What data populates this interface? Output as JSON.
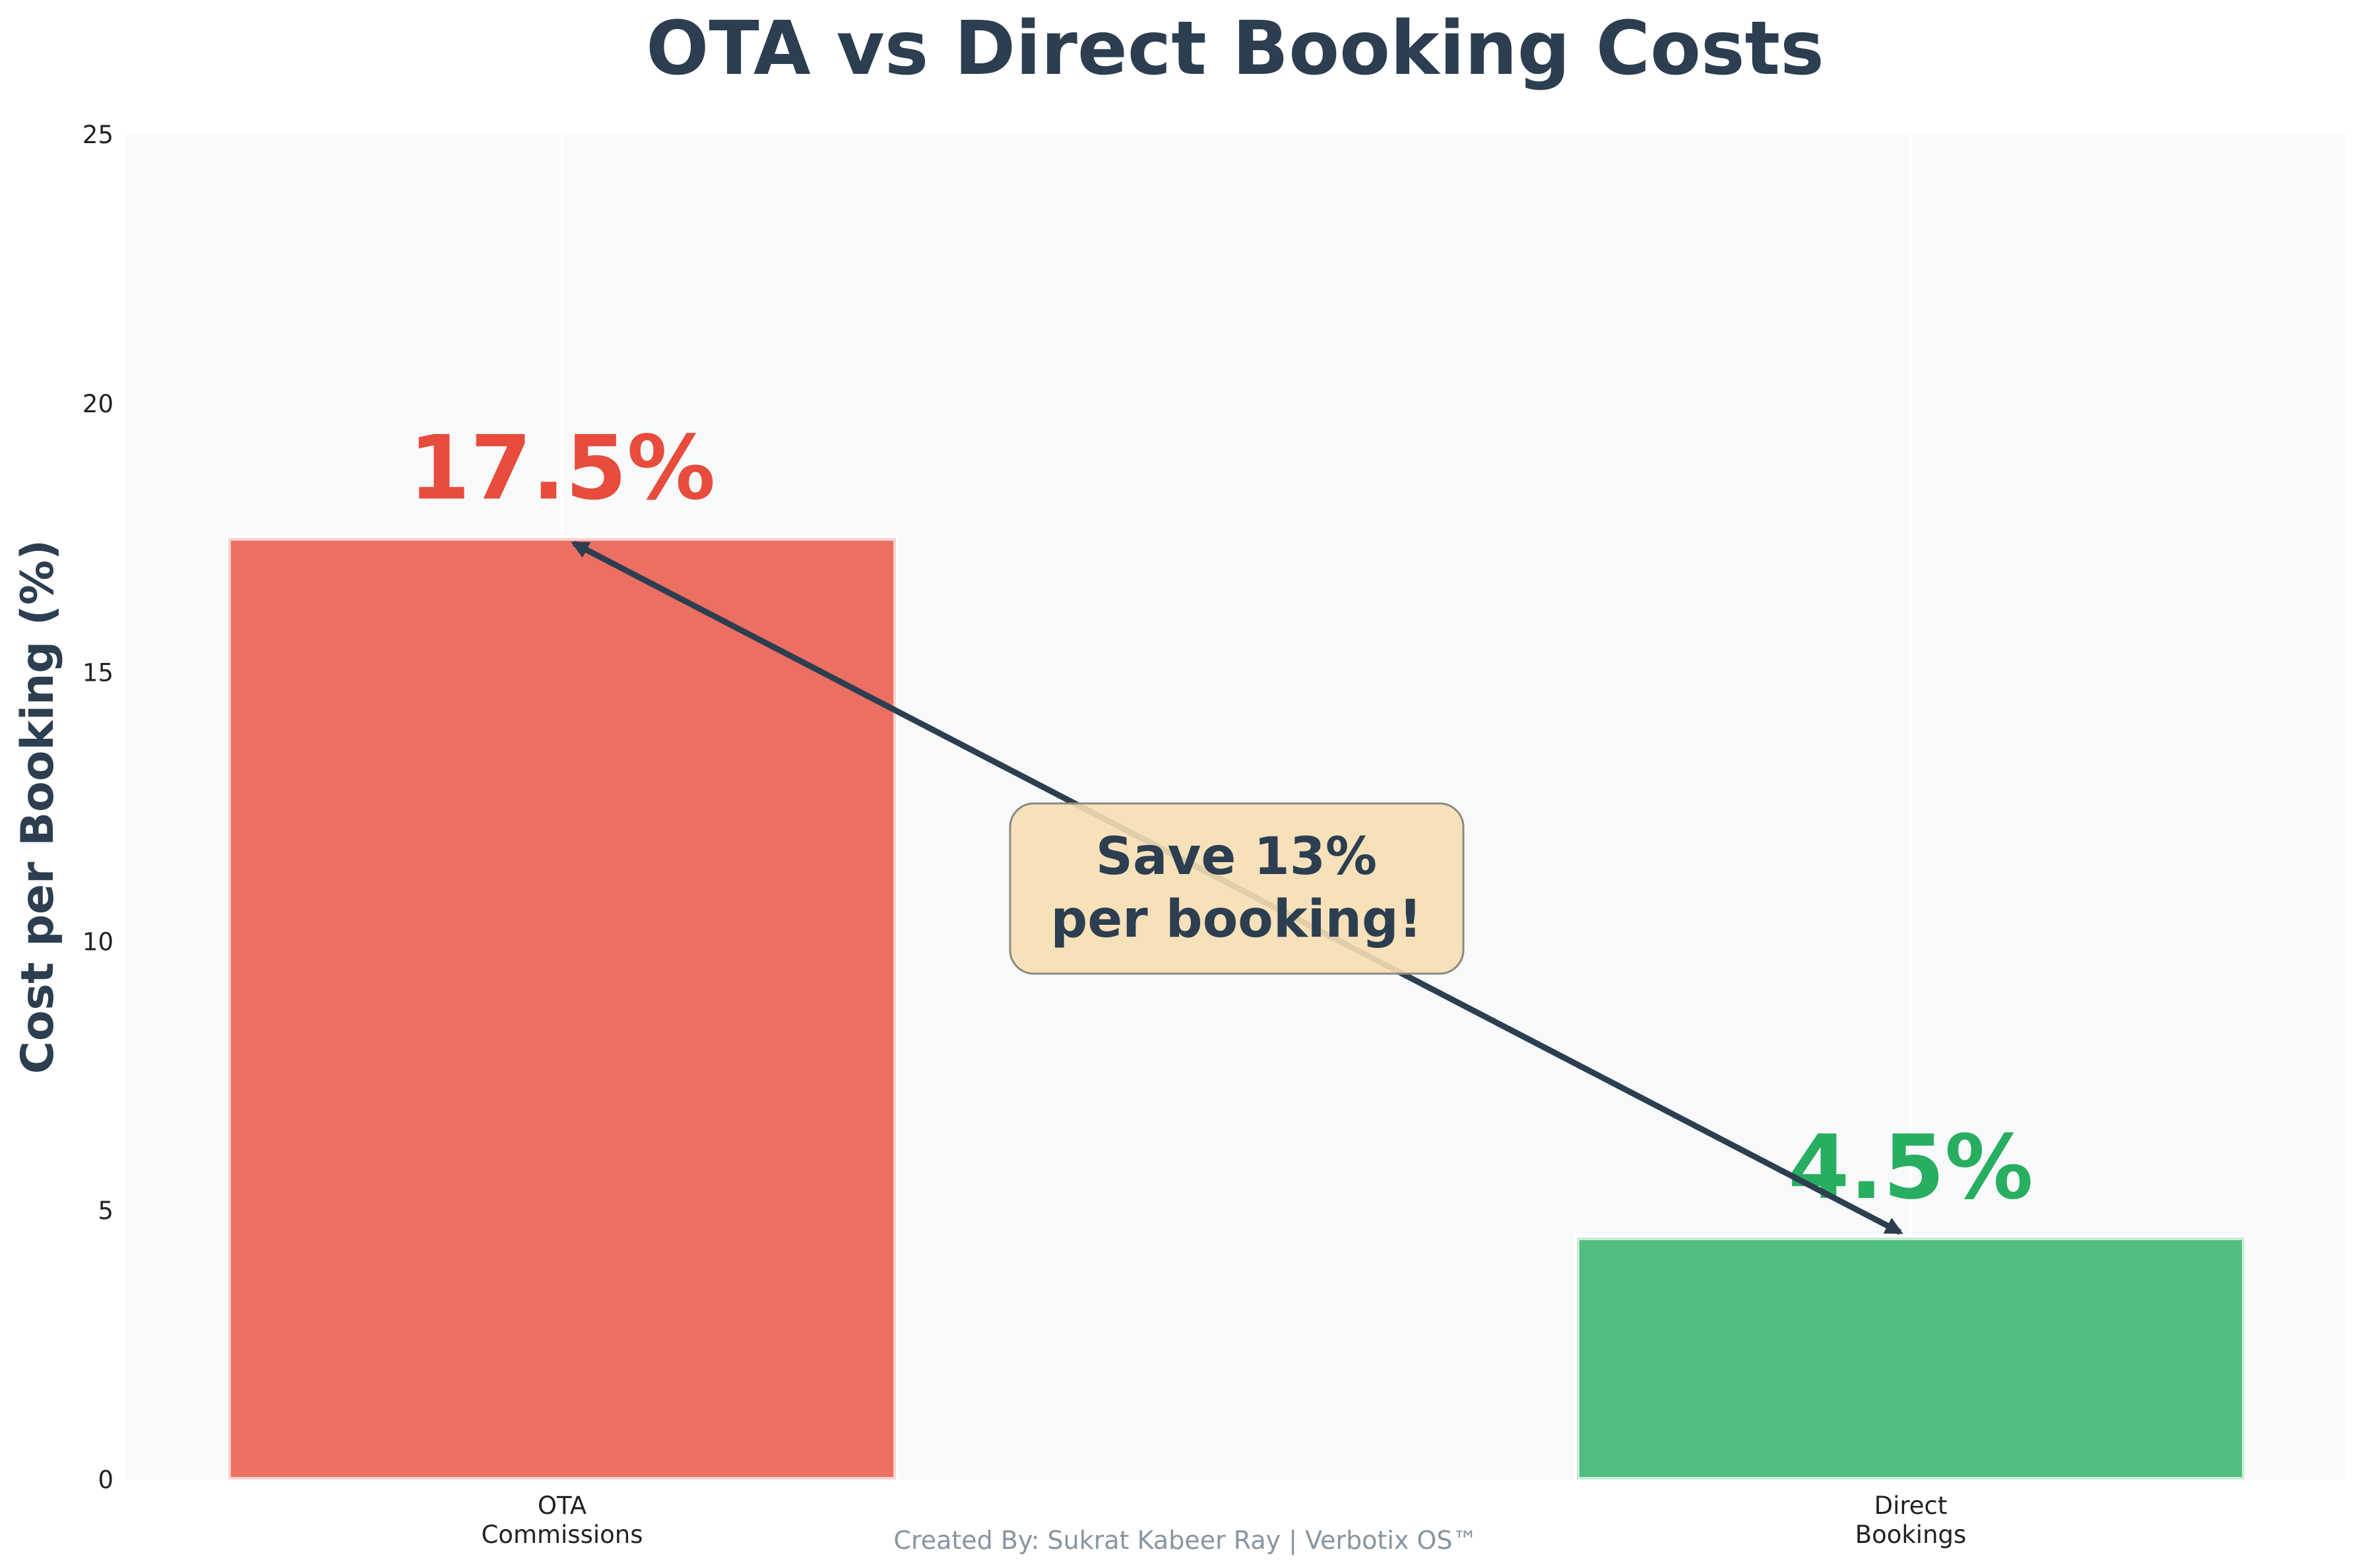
{
  "chart_data": {
    "type": "bar",
    "title": "OTA vs Direct Booking Costs",
    "xlabel": "",
    "ylabel": "Cost per Booking (%)",
    "ylim": [
      0,
      25
    ],
    "yticks": [
      "0",
      "5",
      "10",
      "15",
      "20",
      "25"
    ],
    "grid": "vertical gridlines at categories",
    "categories": [
      "OTA\nCommissions",
      "Direct\nBookings"
    ],
    "values": [
      17.5,
      4.5
    ],
    "value_labels": [
      "17.5%",
      "4.5%"
    ],
    "colors": [
      "#e74c3c",
      "#27ae60"
    ],
    "label_colors": [
      "#e74c3c",
      "#27ae60"
    ],
    "annotation": {
      "text_lines": [
        "Save 13%",
        "per booking!"
      ],
      "arrow_from": {
        "category": "Direct\nBookings",
        "value": 4.5
      },
      "arrow_to": {
        "category": "OTA\nCommissions",
        "value": 17.5
      },
      "box_color": "#f5deb3",
      "text_color": "#2c3e50"
    }
  },
  "footer": "Created By: Sukrat Kabeer Ray | Verbotix OS™",
  "colors": {
    "title": "#2c3e50",
    "plot_bg": "#f8f9fa",
    "footer": "#8795a1"
  }
}
